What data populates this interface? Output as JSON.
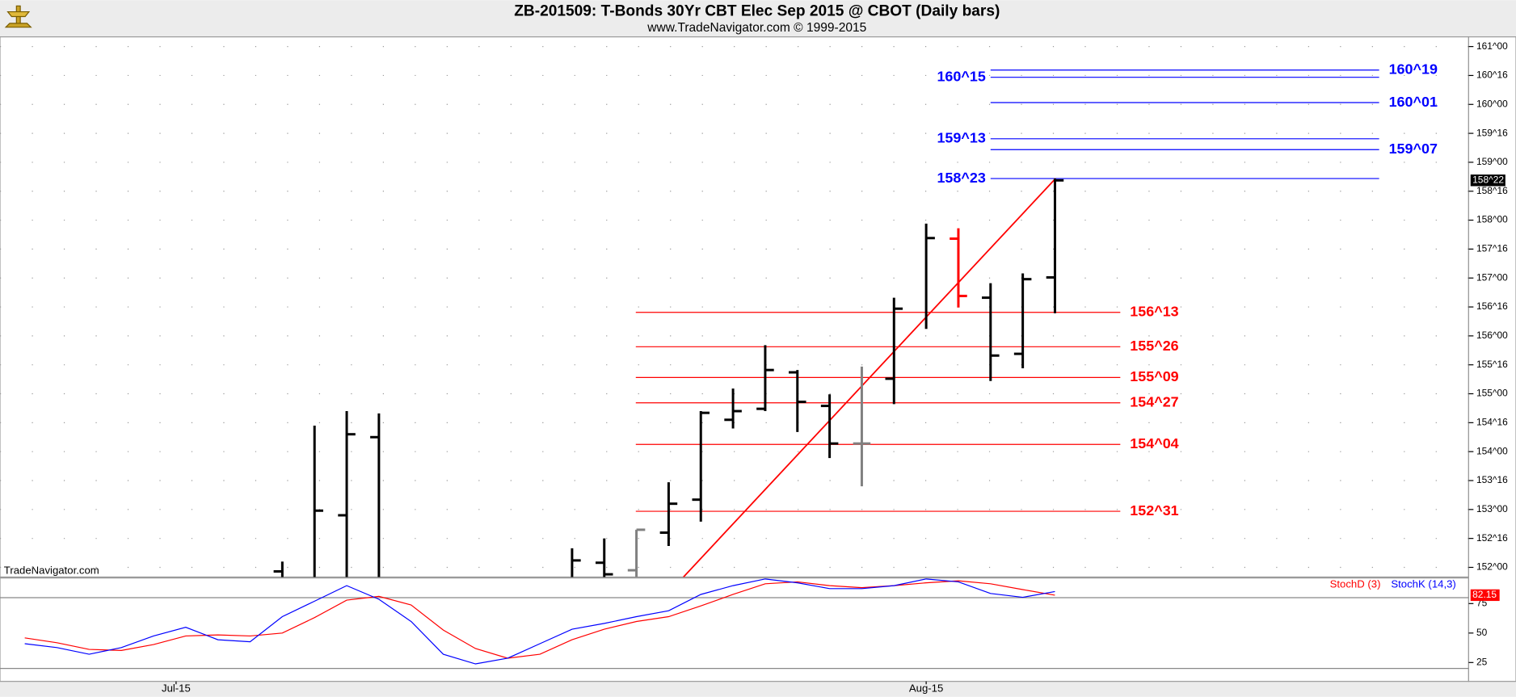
{
  "chart_data": [
    {
      "type": "ohlc",
      "title": "ZB-201509:  T-Bonds 30Yr CBT Elec Sep 2015 @ CBOT  (Daily bars)",
      "subtitle": "www.TradeNavigator.com © 1999-2015",
      "watermark": "TradeNavigator.com",
      "xlim": [
        -28.77,
        16.85
      ],
      "ylim": [
        151.833,
        161.167
      ],
      "yticks": [
        {
          "value": 161,
          "label": "161^00"
        },
        {
          "value": 160.5,
          "label": "160^16"
        },
        {
          "value": 160,
          "label": "160^00"
        },
        {
          "value": 159.5,
          "label": "159^16"
        },
        {
          "value": 159,
          "label": "159^00"
        },
        {
          "value": 158.5,
          "label": "158^16"
        },
        {
          "value": 158,
          "label": "158^00"
        },
        {
          "value": 157.5,
          "label": "157^16"
        },
        {
          "value": 157,
          "label": "157^00"
        },
        {
          "value": 156.5,
          "label": "156^16"
        },
        {
          "value": 156,
          "label": "156^00"
        },
        {
          "value": 155.5,
          "label": "155^16"
        },
        {
          "value": 155,
          "label": "155^00"
        },
        {
          "value": 154.5,
          "label": "154^16"
        },
        {
          "value": 154,
          "label": "154^00"
        },
        {
          "value": 153.5,
          "label": "153^16"
        },
        {
          "value": 153,
          "label": "153^00"
        },
        {
          "value": 152.5,
          "label": "152^16"
        },
        {
          "value": 152,
          "label": "152^00"
        }
      ],
      "grid": true,
      "x": [
        -20,
        -19,
        -18,
        -17,
        -11,
        -10,
        -9,
        -8,
        -7,
        -6,
        -5,
        -4,
        -3,
        -2,
        -1,
        0,
        1,
        2,
        3,
        4
      ],
      "open": [
        151.93,
        null,
        152.9,
        154.25,
        null,
        152.08,
        151.95,
        152.6,
        153.17,
        154.55,
        154.74,
        155.37,
        154.79,
        154.14,
        155.26,
        null,
        157.68,
        156.66,
        155.69,
        157.01
      ],
      "high": [
        152.1,
        154.45,
        154.7,
        154.66,
        152.33,
        152.5,
        152.65,
        153.47,
        154.7,
        155.09,
        155.84,
        155.41,
        154.99,
        155.47,
        156.66,
        157.94,
        157.86,
        156.91,
        157.08,
        158.72
      ],
      "low": [
        null,
        null,
        null,
        null,
        null,
        null,
        null,
        152.37,
        152.79,
        154.4,
        154.7,
        154.34,
        153.89,
        153.4,
        154.82,
        156.12,
        156.49,
        155.22,
        155.44,
        156.39
      ],
      "close": [
        null,
        152.98,
        154.3,
        null,
        152.12,
        151.88,
        152.65,
        153.1,
        154.67,
        154.7,
        155.41,
        154.86,
        154.14,
        154.14,
        156.47,
        157.69,
        156.69,
        155.66,
        156.98,
        158.6875
      ],
      "colors": [
        "#000000",
        "#000000",
        "#000000",
        "#000000",
        "#000000",
        "#000000",
        "#808080",
        "#000000",
        "#000000",
        "#000000",
        "#000000",
        "#000000",
        "#000000",
        "#808080",
        "#000000",
        "#000000",
        "#ff0000",
        "#000000",
        "#000000",
        "#000000"
      ],
      "last_price": {
        "value": 158.6875,
        "label": "158^22"
      },
      "levels": [
        {
          "value": 160.59375,
          "label": "160^19",
          "color": "#0000ff",
          "side": "right",
          "x": [
            2.0,
            14.07
          ]
        },
        {
          "value": 160.46875,
          "label": "160^15",
          "color": "#0000ff",
          "side": "left",
          "x": [
            2.0,
            14.07
          ]
        },
        {
          "value": 160.03125,
          "label": "160^01",
          "color": "#0000ff",
          "side": "right",
          "x": [
            2.0,
            14.07
          ]
        },
        {
          "value": 159.40625,
          "label": "159^13",
          "color": "#0000ff",
          "side": "left",
          "x": [
            2.0,
            14.07
          ]
        },
        {
          "value": 159.21875,
          "label": "159^07",
          "color": "#0000ff",
          "side": "right",
          "x": [
            2.0,
            14.07
          ]
        },
        {
          "value": 158.71875,
          "label": "158^23",
          "color": "#0000ff",
          "side": "left",
          "x": [
            2.0,
            14.07
          ]
        },
        {
          "value": 156.40625,
          "label": "156^13",
          "color": "#ff0000",
          "side": "right",
          "x": [
            -9.02,
            6.03
          ]
        },
        {
          "value": 155.8125,
          "label": "155^26",
          "color": "#ff0000",
          "side": "right",
          "x": [
            -9.02,
            6.03
          ]
        },
        {
          "value": 155.28125,
          "label": "155^09",
          "color": "#ff0000",
          "side": "right",
          "x": [
            -9.02,
            6.03
          ]
        },
        {
          "value": 154.84375,
          "label": "154^27",
          "color": "#ff0000",
          "side": "right",
          "x": [
            -9.02,
            6.03
          ]
        },
        {
          "value": 154.125,
          "label": "154^04",
          "color": "#ff0000",
          "side": "right",
          "x": [
            -9.02,
            6.03
          ]
        },
        {
          "value": 152.96875,
          "label": "152^31",
          "color": "#ff0000",
          "side": "right",
          "x": [
            -9.02,
            6.03
          ]
        }
      ],
      "trendline": {
        "x": [
          -7.54,
          4.02
        ],
        "y": [
          151.833,
          158.72
        ],
        "color": "#ff0000"
      }
    },
    {
      "type": "line",
      "xlim": [
        -28.77,
        16.85
      ],
      "xticks": [
        {
          "value": -23.3,
          "label": "Jul-15"
        },
        {
          "value": 0,
          "label": "Aug-15"
        }
      ],
      "ylim": [
        9,
        96.7
      ],
      "yticks": [
        25,
        50,
        75
      ],
      "ref_lines": [
        20,
        80
      ],
      "x": [
        -28,
        -27,
        -26,
        -25,
        -24,
        -23,
        -22,
        -21,
        -20,
        -19,
        -18,
        -17,
        -16,
        -15,
        -14,
        -13,
        -12,
        -11,
        -10,
        -9,
        -8,
        -7,
        -6,
        -5,
        -4,
        -3,
        -2,
        -1,
        0,
        1,
        2,
        3,
        4
      ],
      "series": [
        {
          "name": "StochD (3)",
          "color": "#ff0000",
          "last_label": "82.15",
          "values": [
            45.9,
            41.8,
            36.1,
            35.2,
            40.2,
            47.5,
            48.4,
            47.5,
            50.0,
            63.1,
            77.9,
            81.1,
            73.8,
            52.5,
            36.9,
            28.7,
            32.0,
            44.3,
            53.3,
            59.8,
            63.9,
            73.0,
            82.8,
            91.8,
            93.4,
            90.2,
            88.5,
            90.2,
            92.6,
            94.3,
            91.8,
            86.9,
            82.15
          ]
        },
        {
          "name": "StochK (14,3)",
          "color": "#0000ff",
          "values": [
            41.0,
            37.7,
            32.0,
            37.7,
            47.5,
            54.9,
            44.3,
            42.6,
            63.9,
            77.0,
            90.2,
            78.7,
            59.8,
            32.0,
            23.8,
            28.7,
            41.0,
            53.3,
            58.2,
            63.9,
            68.9,
            82.8,
            90.2,
            95.9,
            92.6,
            87.7,
            87.7,
            90.2,
            95.9,
            93.4,
            83.6,
            80.3,
            85.2
          ]
        }
      ]
    }
  ]
}
